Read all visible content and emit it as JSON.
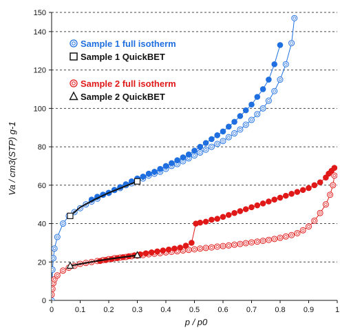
{
  "chart_data": {
    "type": "scatter",
    "title": "",
    "xlabel": "p / p0",
    "ylabel": "Va / cm3(STP) g-1",
    "xlim": [
      0,
      1
    ],
    "ylim": [
      0,
      150
    ],
    "x_ticks": [
      "0",
      "0.1",
      "0.2",
      "0.3",
      "0.4",
      "0.5",
      "0.6",
      "0.7",
      "0.8",
      "0.9",
      "1"
    ],
    "y_ticks": [
      "0",
      "20",
      "40",
      "60",
      "80",
      "100",
      "120",
      "140",
      "150"
    ],
    "grid": "horizontal dashed",
    "legend_placement": "upper-left and middle-left",
    "colors": {
      "sample1": "#1f6fe0",
      "sample2": "#e01818",
      "quickbet": "#111111",
      "grid": "#444444"
    },
    "series": [
      {
        "name": "Sample 1 full isotherm",
        "branch": "adsorption",
        "marker": "circle-open",
        "color": "#1f6fe0",
        "x": [
          0.0,
          0.003,
          0.006,
          0.01,
          0.02,
          0.04,
          0.06,
          0.08,
          0.1,
          0.12,
          0.14,
          0.16,
          0.18,
          0.2,
          0.22,
          0.24,
          0.26,
          0.28,
          0.3,
          0.32,
          0.34,
          0.36,
          0.38,
          0.4,
          0.42,
          0.44,
          0.46,
          0.48,
          0.5,
          0.52,
          0.54,
          0.56,
          0.58,
          0.6,
          0.62,
          0.64,
          0.66,
          0.68,
          0.7,
          0.72,
          0.74,
          0.76,
          0.78,
          0.8,
          0.82,
          0.84,
          0.85
        ],
        "y": [
          0,
          16,
          22,
          27,
          33,
          40,
          44,
          46,
          48,
          50,
          51.5,
          53,
          55,
          56,
          57.5,
          58.5,
          60,
          61,
          62.5,
          63.5,
          65,
          66,
          67,
          68.5,
          70,
          71,
          72.5,
          74,
          75.5,
          77,
          78.5,
          80,
          81.5,
          83,
          85,
          87,
          89,
          91.5,
          94,
          97,
          100,
          104,
          109,
          115,
          123,
          134,
          147
        ]
      },
      {
        "name": "Sample 1 full isotherm",
        "branch": "desorption",
        "marker": "circle-filled",
        "color": "#1f6fe0",
        "x": [
          0.8,
          0.78,
          0.76,
          0.74,
          0.72,
          0.7,
          0.68,
          0.66,
          0.64,
          0.62,
          0.6,
          0.58,
          0.56,
          0.54,
          0.52,
          0.5,
          0.48,
          0.46,
          0.44,
          0.42,
          0.4,
          0.38,
          0.36,
          0.34,
          0.32,
          0.3,
          0.28,
          0.26,
          0.24,
          0.22,
          0.2,
          0.18,
          0.16,
          0.14
        ],
        "y": [
          133,
          123,
          115,
          110,
          106,
          102,
          99,
          96,
          93,
          90.5,
          88,
          86,
          84,
          82,
          80,
          78,
          76,
          74.5,
          73,
          71.5,
          70,
          68.5,
          67,
          66,
          64.5,
          63.5,
          62,
          60.5,
          59,
          57.5,
          56,
          55,
          54,
          52.5
        ]
      },
      {
        "name": "Sample 1 QuickBET",
        "marker": "square-open",
        "color": "#111111",
        "x": [
          0.065,
          0.1,
          0.15,
          0.2,
          0.25,
          0.3
        ],
        "y": [
          44,
          48.5,
          52.5,
          56,
          59,
          62
        ]
      },
      {
        "name": "Sample 2 full isotherm",
        "branch": "adsorption",
        "marker": "circle-open",
        "color": "#e01818",
        "x": [
          0.0,
          0.003,
          0.006,
          0.01,
          0.02,
          0.04,
          0.06,
          0.08,
          0.1,
          0.12,
          0.14,
          0.16,
          0.18,
          0.2,
          0.22,
          0.24,
          0.26,
          0.28,
          0.3,
          0.32,
          0.34,
          0.36,
          0.38,
          0.4,
          0.42,
          0.44,
          0.46,
          0.48,
          0.5,
          0.52,
          0.54,
          0.56,
          0.58,
          0.6,
          0.62,
          0.64,
          0.66,
          0.68,
          0.7,
          0.72,
          0.74,
          0.76,
          0.78,
          0.8,
          0.82,
          0.84,
          0.86,
          0.88,
          0.9,
          0.92,
          0.94,
          0.96,
          0.975,
          0.985,
          0.99
        ],
        "y": [
          3,
          6,
          9,
          11,
          13,
          15.5,
          17,
          18,
          19,
          19.5,
          20,
          20.5,
          21,
          21.5,
          22,
          22.3,
          22.6,
          23,
          23.3,
          23.6,
          24,
          24.3,
          24.6,
          25,
          25.3,
          25.6,
          26,
          26.3,
          26.6,
          27,
          27.3,
          27.6,
          28,
          28.3,
          28.6,
          29,
          29.4,
          29.8,
          30.2,
          30.6,
          31,
          31.5,
          32,
          32.6,
          33.3,
          34,
          35,
          36.5,
          38.5,
          41.5,
          45.5,
          50,
          55,
          60,
          65
        ]
      },
      {
        "name": "Sample 2 full isotherm",
        "branch": "desorption",
        "marker": "circle-filled",
        "color": "#e01818",
        "x": [
          0.99,
          0.98,
          0.97,
          0.96,
          0.94,
          0.92,
          0.9,
          0.88,
          0.86,
          0.84,
          0.82,
          0.8,
          0.78,
          0.76,
          0.74,
          0.72,
          0.7,
          0.68,
          0.66,
          0.64,
          0.62,
          0.6,
          0.58,
          0.56,
          0.54,
          0.52,
          0.505,
          0.49,
          0.47,
          0.45,
          0.43,
          0.41,
          0.39,
          0.37,
          0.35,
          0.33,
          0.31,
          0.29,
          0.27,
          0.25,
          0.23,
          0.21,
          0.19,
          0.17
        ],
        "y": [
          69,
          67.5,
          66,
          64,
          61.5,
          60,
          58.5,
          57.5,
          56.5,
          55.5,
          54.5,
          53.5,
          52.5,
          51.5,
          50.5,
          49.5,
          48.5,
          47.5,
          46.5,
          45.5,
          44.5,
          43.5,
          42.5,
          42,
          41,
          40.5,
          40,
          30,
          28.5,
          27.5,
          27,
          26.5,
          26,
          25.5,
          25,
          24.5,
          24,
          23.5,
          23,
          22.5,
          22,
          21.5,
          21,
          20.5
        ]
      },
      {
        "name": "Sample 2 QuickBET",
        "marker": "triangle-open",
        "color": "#111111",
        "x": [
          0.065,
          0.1,
          0.15,
          0.2,
          0.25,
          0.3
        ],
        "y": [
          18,
          19,
          20.3,
          21.5,
          22.5,
          23.5
        ]
      }
    ],
    "legend": [
      {
        "label": "Sample 1 full isotherm",
        "symbol": "double-circle",
        "color": "#1f6fe0"
      },
      {
        "label": "Sample 1 QuickBET",
        "symbol": "square",
        "color": "#111111"
      },
      {
        "label": "Sample 2 full isotherm",
        "symbol": "double-circle",
        "color": "#e01818"
      },
      {
        "label": "Sample 2 QuickBET",
        "symbol": "triangle",
        "color": "#111111"
      }
    ]
  }
}
